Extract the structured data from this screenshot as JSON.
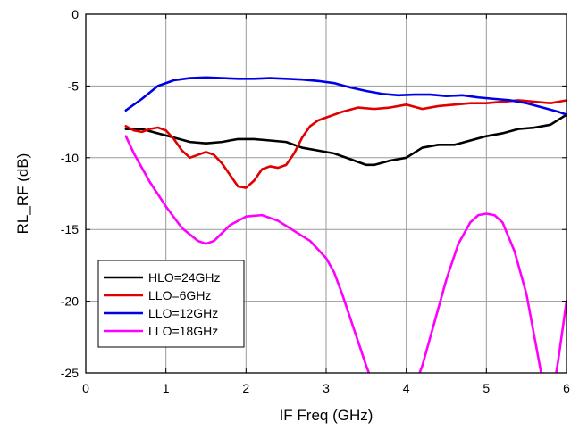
{
  "chart_data": {
    "type": "line",
    "xlabel": "IF Freq (GHz)",
    "ylabel": "RL_RF (dB)",
    "xlim": [
      0,
      6
    ],
    "ylim": [
      -25,
      0
    ],
    "xticks": [
      0,
      1,
      2,
      3,
      4,
      5,
      6
    ],
    "yticks": [
      0,
      -5,
      -10,
      -15,
      -20,
      -25
    ],
    "grid": true,
    "legend_position": "bottom-left",
    "series": [
      {
        "name": "HLO=24GHz",
        "color": "#000000",
        "x": [
          0.5,
          0.7,
          0.9,
          1.1,
          1.3,
          1.5,
          1.7,
          1.9,
          2.1,
          2.3,
          2.5,
          2.7,
          2.9,
          3.1,
          3.3,
          3.5,
          3.6,
          3.8,
          4.0,
          4.2,
          4.4,
          4.6,
          4.8,
          5.0,
          5.2,
          5.4,
          5.6,
          5.8,
          6.0
        ],
        "y": [
          -8.0,
          -8.0,
          -8.3,
          -8.6,
          -8.9,
          -9.0,
          -8.9,
          -8.7,
          -8.7,
          -8.8,
          -8.9,
          -9.3,
          -9.5,
          -9.7,
          -10.1,
          -10.5,
          -10.5,
          -10.2,
          -10.0,
          -9.3,
          -9.1,
          -9.1,
          -8.8,
          -8.5,
          -8.3,
          -8.0,
          -7.9,
          -7.7,
          -7.0
        ]
      },
      {
        "name": "LLO=6GHz",
        "color": "#e00000",
        "x": [
          0.5,
          0.6,
          0.7,
          0.8,
          0.9,
          1.0,
          1.1,
          1.2,
          1.3,
          1.4,
          1.5,
          1.6,
          1.7,
          1.8,
          1.9,
          2.0,
          2.1,
          2.2,
          2.3,
          2.4,
          2.5,
          2.6,
          2.7,
          2.8,
          2.9,
          3.0,
          3.2,
          3.4,
          3.6,
          3.8,
          4.0,
          4.2,
          4.4,
          4.6,
          4.8,
          5.0,
          5.2,
          5.4,
          5.6,
          5.8,
          6.0
        ],
        "y": [
          -7.8,
          -8.1,
          -8.2,
          -8.0,
          -7.9,
          -8.1,
          -8.7,
          -9.5,
          -10.0,
          -9.8,
          -9.6,
          -9.8,
          -10.4,
          -11.2,
          -12.0,
          -12.1,
          -11.6,
          -10.8,
          -10.6,
          -10.7,
          -10.5,
          -9.7,
          -8.6,
          -7.8,
          -7.4,
          -7.2,
          -6.8,
          -6.5,
          -6.6,
          -6.5,
          -6.3,
          -6.6,
          -6.4,
          -6.3,
          -6.2,
          -6.2,
          -6.1,
          -6.0,
          -6.1,
          -6.2,
          -6.0
        ]
      },
      {
        "name": "LLO=12GHz",
        "color": "#0000e6",
        "x": [
          0.5,
          0.7,
          0.9,
          1.1,
          1.3,
          1.5,
          1.7,
          1.9,
          2.1,
          2.3,
          2.5,
          2.7,
          2.9,
          3.1,
          3.3,
          3.5,
          3.7,
          3.9,
          4.1,
          4.3,
          4.5,
          4.7,
          4.9,
          5.1,
          5.3,
          5.5,
          5.7,
          5.9,
          6.0
        ],
        "y": [
          -6.7,
          -5.9,
          -5.0,
          -4.6,
          -4.45,
          -4.4,
          -4.45,
          -4.5,
          -4.5,
          -4.45,
          -4.5,
          -4.55,
          -4.65,
          -4.8,
          -5.1,
          -5.35,
          -5.55,
          -5.65,
          -5.6,
          -5.6,
          -5.7,
          -5.65,
          -5.8,
          -5.9,
          -6.0,
          -6.2,
          -6.5,
          -6.8,
          -7.0
        ]
      },
      {
        "name": "LLO=18GHz",
        "color": "#ff00ff",
        "x": [
          0.5,
          0.6,
          0.8,
          1.0,
          1.2,
          1.4,
          1.5,
          1.6,
          1.8,
          2.0,
          2.2,
          2.4,
          2.6,
          2.8,
          3.0,
          3.1,
          3.2,
          3.35,
          3.5,
          3.6
        ],
        "y": [
          -8.5,
          -9.7,
          -11.7,
          -13.4,
          -14.9,
          -15.8,
          -16.0,
          -15.8,
          -14.7,
          -14.1,
          -14.0,
          -14.4,
          -15.1,
          -15.8,
          -17.0,
          -18.0,
          -19.5,
          -22.0,
          -24.5,
          -26.0
        ],
        "x2": [
          4.1,
          4.2,
          4.35,
          4.5,
          4.65,
          4.8,
          4.9,
          5.0,
          5.1,
          5.2,
          5.35,
          5.5,
          5.6,
          5.7,
          5.8,
          5.9,
          6.0
        ],
        "y2": [
          -26.0,
          -24.5,
          -21.5,
          -18.5,
          -16.0,
          -14.5,
          -14.0,
          -13.9,
          -14.0,
          -14.5,
          -16.5,
          -19.5,
          -22.5,
          -25.5,
          -27.5,
          -24.0,
          -20.0
        ]
      }
    ]
  }
}
